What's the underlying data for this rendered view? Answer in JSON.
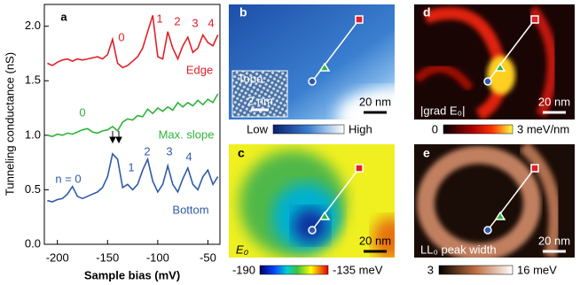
{
  "chart_data": {
    "type": "line",
    "xlabel": "Sample bias (mV)",
    "ylabel": "Tunneling conductance (nS)",
    "xlim": [
      -213,
      -38
    ],
    "ylim": [
      0,
      2.2
    ],
    "xticks": [
      -200,
      -150,
      -100,
      -50
    ],
    "yticks": [
      {
        "value": 0,
        "label": "0.0"
      },
      0.5,
      {
        "value": 1,
        "label": "1.0"
      },
      1.5,
      {
        "value": 2,
        "label": "2.0"
      }
    ],
    "annotations": [
      "a",
      "0",
      "1",
      "2",
      "3",
      "4",
      "Edge",
      "0",
      "Max. slope",
      "n = 0",
      "1",
      "2",
      "3",
      "4",
      "Bottom"
    ],
    "x": [
      -210,
      -205,
      -200,
      -195,
      -190,
      -185,
      -180,
      -175,
      -170,
      -165,
      -160,
      -155,
      -150,
      -145,
      -140,
      -135,
      -130,
      -125,
      -120,
      -115,
      -110,
      -105,
      -100,
      -95,
      -90,
      -85,
      -80,
      -75,
      -70,
      -65,
      -60,
      -55,
      -50,
      -45,
      -40
    ],
    "series": [
      {
        "name": "Edge",
        "color": "#e0202a",
        "values": [
          1.66,
          1.64,
          1.67,
          1.69,
          1.7,
          1.68,
          1.7,
          1.69,
          1.7,
          1.71,
          1.72,
          1.7,
          1.74,
          1.88,
          1.66,
          1.62,
          1.64,
          1.68,
          1.72,
          1.8,
          1.95,
          2.1,
          1.72,
          1.7,
          1.95,
          1.8,
          1.7,
          1.82,
          1.9,
          1.76,
          1.8,
          1.92,
          1.85,
          1.82,
          1.92
        ]
      },
      {
        "name": "Max. slope",
        "color": "#2db33a",
        "values": [
          1.0,
          0.99,
          1.01,
          1.0,
          1.02,
          1.01,
          1.03,
          1.05,
          1.06,
          1.03,
          1.02,
          1.04,
          1.05,
          1.08,
          1.04,
          1.12,
          1.15,
          1.14,
          1.18,
          1.17,
          1.24,
          1.2,
          1.25,
          1.22,
          1.26,
          1.23,
          1.3,
          1.26,
          1.3,
          1.27,
          1.32,
          1.28,
          1.33,
          1.3,
          1.38
        ]
      },
      {
        "name": "Bottom",
        "color": "#2f5aa8",
        "values": [
          0.4,
          0.39,
          0.41,
          0.42,
          0.46,
          0.53,
          0.44,
          0.42,
          0.44,
          0.46,
          0.48,
          0.52,
          0.62,
          0.83,
          0.78,
          0.52,
          0.55,
          0.5,
          0.55,
          0.68,
          0.78,
          0.58,
          0.48,
          0.55,
          0.72,
          0.55,
          0.48,
          0.6,
          0.7,
          0.55,
          0.5,
          0.62,
          0.68,
          0.55,
          0.62
        ]
      }
    ]
  },
  "panels": [
    {
      "label": "b",
      "overlay": "Topo.",
      "inset_scale": "2 nm",
      "scale": "20 nm",
      "colorbar": [
        "Low",
        "High"
      ]
    },
    {
      "label": "d",
      "overlay": "|grad E₀|",
      "scale": "20 nm",
      "colorbar": [
        "0",
        "3 meV/nm"
      ]
    },
    {
      "label": "c",
      "overlay": "E₀",
      "scale": "20 nm",
      "colorbar": [
        "-190",
        "-135 meV"
      ]
    },
    {
      "label": "e",
      "overlay": "LL₀ peak width",
      "scale": "20 nm",
      "colorbar": [
        "3",
        "16 meV"
      ]
    }
  ]
}
